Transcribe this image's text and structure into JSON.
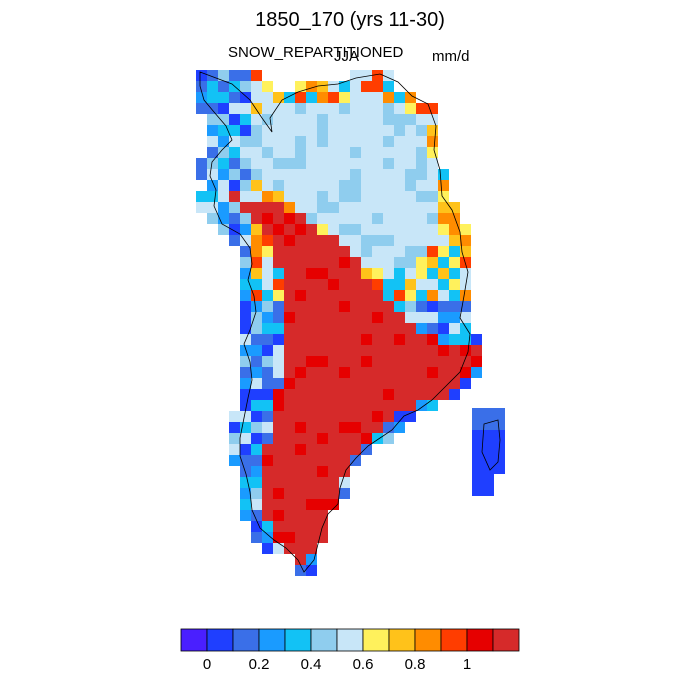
{
  "title": "1850_170 (yrs 11-30)",
  "variable": "SNOW_REPARTITIONED",
  "season": "JJA",
  "units": "mm/d",
  "palette": [
    "#4a1fff",
    "#1f3fff",
    "#3a6fe8",
    "#1a9bff",
    "#12c2f5",
    "#8fcdee",
    "#c8e6f8",
    "#fff15c",
    "#ffc21a",
    "#ff8c00",
    "#ff3d00",
    "#e60000",
    "#d62a2a"
  ],
  "colorbar_ticks": [
    "0",
    "0.2",
    "0.4",
    "0.6",
    "0.8",
    "1"
  ],
  "colorbar_tick_index": [
    0.5,
    2.5,
    4.5,
    6.5,
    8.5,
    10.5
  ]
}
